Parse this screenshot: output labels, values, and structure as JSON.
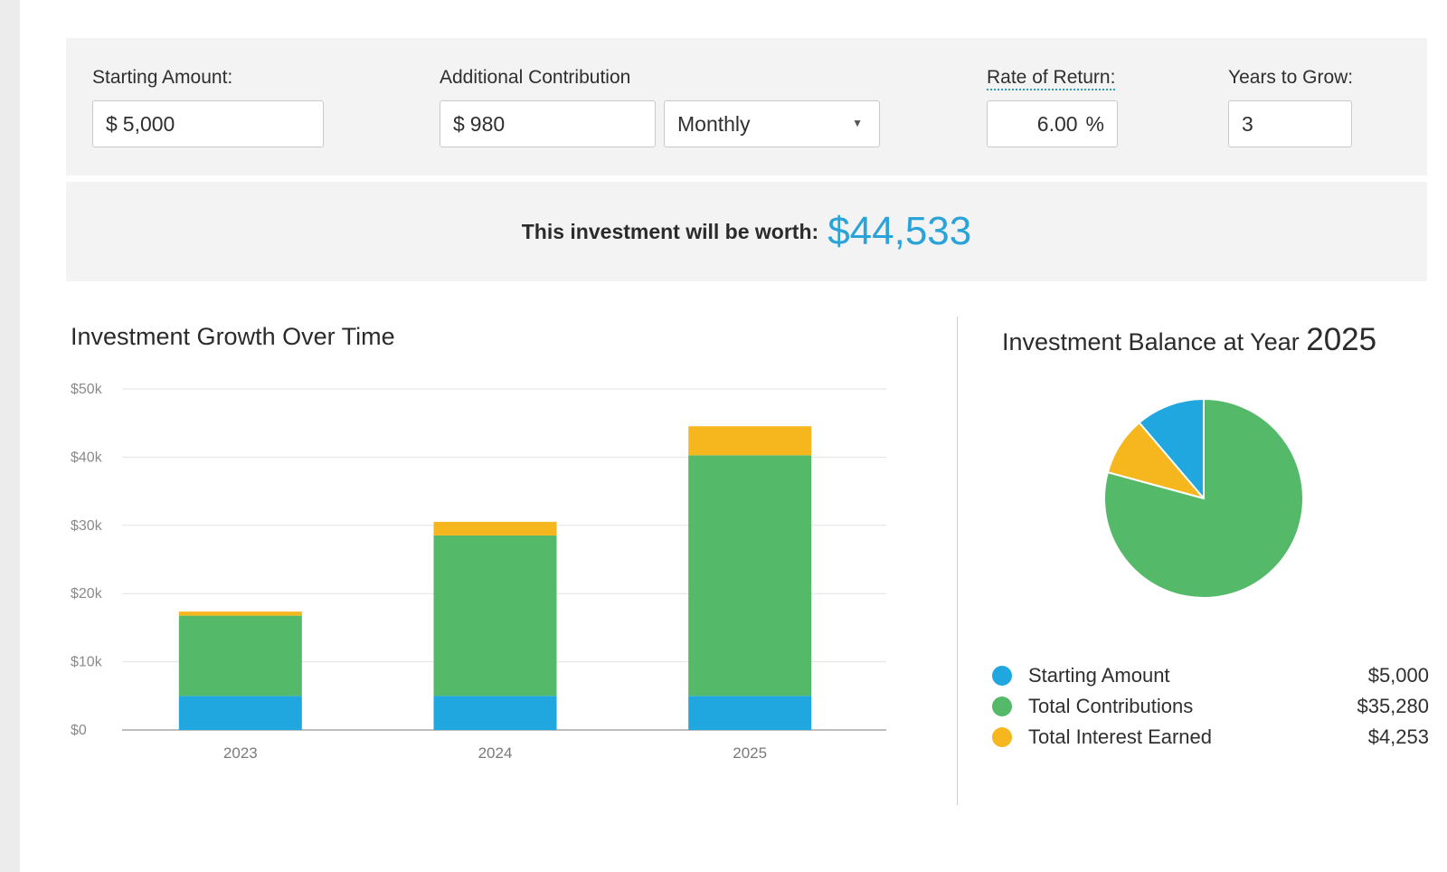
{
  "inputs": {
    "starting_amount": {
      "label": "Starting Amount:",
      "prefix": "$",
      "value": "5,000"
    },
    "additional_contribution": {
      "label": "Additional Contribution",
      "prefix": "$",
      "value": "980",
      "frequency": "Monthly"
    },
    "rate_of_return": {
      "label": "Rate of Return:",
      "value": "6.00",
      "suffix": "%"
    },
    "years_to_grow": {
      "label": "Years to Grow:",
      "value": "3"
    }
  },
  "result": {
    "label": "This investment will be worth:",
    "value": "$44,533"
  },
  "growth_chart": {
    "title": "Investment Growth Over Time"
  },
  "balance_chart": {
    "title": "Investment Balance at Year",
    "year": "2025"
  },
  "legend": [
    {
      "label": "Starting Amount",
      "value": "$5,000",
      "color": "#20a7e0"
    },
    {
      "label": "Total Contributions",
      "value": "$35,280",
      "color": "#55b96a"
    },
    {
      "label": "Total Interest Earned",
      "value": "$4,253",
      "color": "#f6b71e"
    }
  ],
  "chart_data": [
    {
      "type": "bar",
      "stacked": true,
      "title": "Investment Growth Over Time",
      "categories": [
        "2023",
        "2024",
        "2025"
      ],
      "y_ticks": [
        "$0",
        "$10k",
        "$20k",
        "$30k",
        "$40k",
        "$50k"
      ],
      "ylim": [
        0,
        50000
      ],
      "grid": true,
      "series": [
        {
          "name": "Starting Amount",
          "color": "#20a7e0",
          "values": [
            5000,
            5000,
            5000
          ]
        },
        {
          "name": "Total Contributions",
          "color": "#55b96a",
          "values": [
            11760,
            23520,
            35280
          ]
        },
        {
          "name": "Total Interest Earned",
          "color": "#f6b71e",
          "values": [
            600,
            2000,
            4253
          ]
        }
      ]
    },
    {
      "type": "pie",
      "title": "Investment Balance at Year 2025",
      "slices": [
        {
          "name": "Starting Amount",
          "value": 5000,
          "color": "#20a7e0"
        },
        {
          "name": "Total Contributions",
          "value": 35280,
          "color": "#55b96a"
        },
        {
          "name": "Total Interest Earned",
          "value": 4253,
          "color": "#f6b71e"
        }
      ]
    }
  ]
}
